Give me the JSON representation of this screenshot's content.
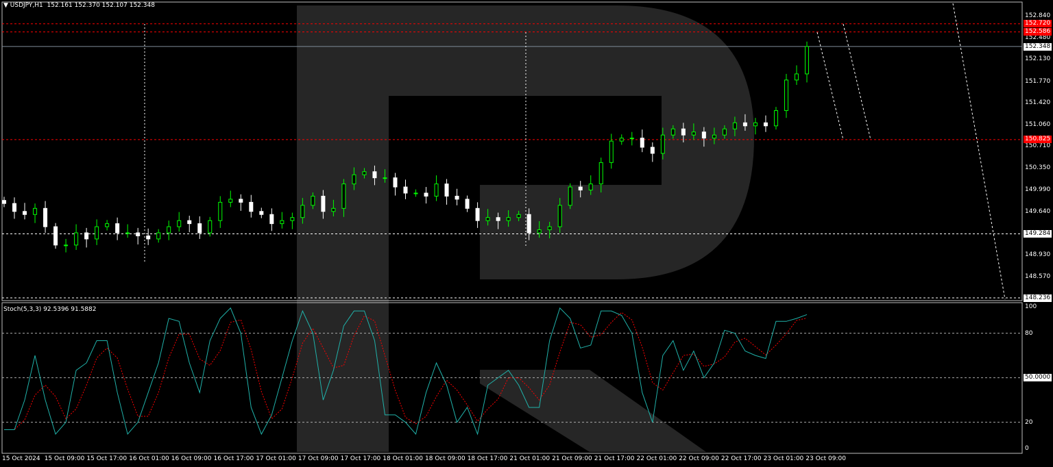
{
  "header": {
    "symbol_title": "USDJPY,H1",
    "ohlc": "152.161 152.370 152.107 152.348"
  },
  "indicator": {
    "title": "Stoch(5,3,3) 92.5396 91.5882"
  },
  "price_axis": [
    "152.840",
    "152.480",
    "152.130",
    "151.770",
    "151.420",
    "151.060",
    "150.710",
    "150.350",
    "149.990",
    "149.640",
    "148.930",
    "148.570"
  ],
  "price_tags": {
    "level_1": "152.720",
    "level_2": "152.586",
    "level_3": "150.825",
    "current": "152.348",
    "support": "149.284",
    "low": "148.236"
  },
  "stoch_axis": {
    "top": "100",
    "upper": "80",
    "mid": "50.0000",
    "lower": "20",
    "bottom": "0"
  },
  "time_axis": [
    "15 Oct 2024",
    "15 Oct 09:00",
    "15 Oct 17:00",
    "16 Oct 01:00",
    "16 Oct 09:00",
    "16 Oct 17:00",
    "17 Oct 01:00",
    "17 Oct 09:00",
    "17 Oct 17:00",
    "18 Oct 01:00",
    "18 Oct 09:00",
    "18 Oct 17:00",
    "21 Oct 01:00",
    "21 Oct 09:00",
    "21 Oct 17:00",
    "22 Oct 01:00",
    "22 Oct 09:00",
    "22 Oct 17:00",
    "23 Oct 01:00",
    "23 Oct 09:00"
  ],
  "colors": {
    "bull": "#00ff00",
    "bear": "#ffffff",
    "level": "#ff0000",
    "stoch_main": "#20b2aa",
    "stoch_signal": "#ff0000",
    "watermark": "#262626"
  },
  "chart_data": {
    "type": "candlestick",
    "price_range": [
      148.236,
      152.84
    ],
    "closes": [
      149.78,
      149.65,
      149.6,
      149.7,
      149.4,
      149.1,
      149.1,
      149.3,
      149.2,
      149.4,
      149.45,
      149.3,
      149.3,
      149.25,
      149.2,
      149.3,
      149.4,
      149.5,
      149.45,
      149.3,
      149.5,
      149.8,
      149.85,
      149.8,
      149.65,
      149.6,
      149.45,
      149.5,
      149.55,
      149.75,
      149.9,
      149.65,
      149.7,
      150.1,
      150.25,
      150.3,
      150.2,
      150.2,
      150.05,
      149.95,
      149.95,
      149.9,
      150.1,
      149.9,
      149.85,
      149.7,
      149.5,
      149.55,
      149.5,
      149.55,
      149.6,
      149.3,
      149.35,
      149.4,
      149.75,
      150.05,
      150.0,
      150.1,
      150.45,
      150.8,
      150.85,
      150.85,
      150.7,
      150.6,
      150.9,
      151.0,
      150.9,
      150.95,
      150.85,
      150.9,
      151.0,
      151.1,
      151.05,
      151.1,
      151.05,
      151.3,
      151.8,
      151.9,
      152.348
    ],
    "stoch_main": [
      15,
      15,
      35,
      65,
      35,
      12,
      20,
      55,
      60,
      75,
      75,
      40,
      12,
      20,
      40,
      60,
      90,
      88,
      60,
      40,
      75,
      90,
      97,
      80,
      30,
      12,
      25,
      50,
      75,
      95,
      80,
      35,
      55,
      85,
      95,
      95,
      75,
      25,
      25,
      20,
      12,
      40,
      60,
      45,
      20,
      30,
      12,
      45,
      50,
      55,
      45,
      30,
      30,
      75,
      97,
      90,
      70,
      72,
      95,
      95,
      92,
      80,
      40,
      20,
      65,
      75,
      55,
      68,
      50,
      60,
      82,
      80,
      68,
      65,
      63,
      88,
      88,
      90,
      92.54
    ],
    "stoch_levels": [
      80,
      50,
      20
    ],
    "levels": [
      152.72,
      152.586,
      150.825,
      149.284,
      148.236
    ]
  }
}
